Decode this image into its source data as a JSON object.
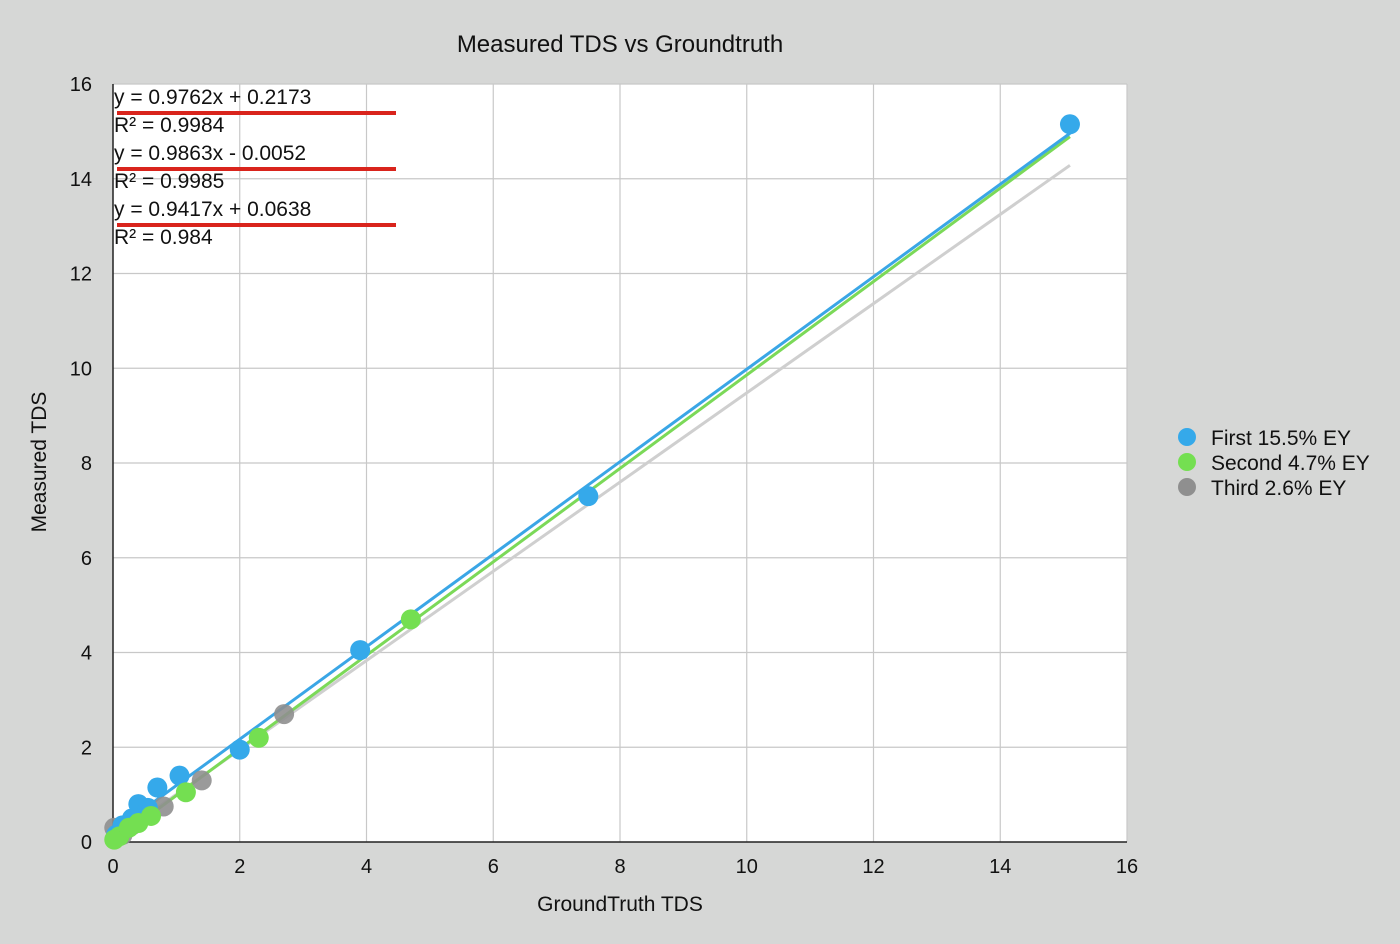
{
  "chart_data": {
    "type": "scatter",
    "title": "Measured TDS vs Groundtruth",
    "xlabel": "GroundTruth TDS",
    "ylabel": "Measured TDS",
    "xlim": [
      0,
      16
    ],
    "ylim": [
      0,
      16
    ],
    "x_ticks": [
      0,
      2,
      4,
      6,
      8,
      10,
      12,
      14,
      16
    ],
    "y_ticks": [
      0,
      2,
      4,
      6,
      8,
      10,
      12,
      14,
      16
    ],
    "grid": true,
    "legend_position": "right",
    "series": [
      {
        "name": "First 15.5% EY",
        "color": "#35a9ea",
        "trendline": {
          "slope": 0.9762,
          "intercept": 0.2173,
          "equation": "y = 0.9762x + 0.2173",
          "r2": "R² = 0.9984",
          "x_range": [
            0,
            15.1
          ]
        },
        "points": [
          {
            "x": 0.05,
            "y": 0.15
          },
          {
            "x": 0.15,
            "y": 0.35
          },
          {
            "x": 0.3,
            "y": 0.5
          },
          {
            "x": 0.4,
            "y": 0.8
          },
          {
            "x": 0.55,
            "y": 0.72
          },
          {
            "x": 0.7,
            "y": 1.15
          },
          {
            "x": 1.05,
            "y": 1.4
          },
          {
            "x": 2.0,
            "y": 1.95
          },
          {
            "x": 3.9,
            "y": 4.05
          },
          {
            "x": 7.5,
            "y": 7.3
          },
          {
            "x": 15.1,
            "y": 15.15
          }
        ]
      },
      {
        "name": "Second 4.7% EY",
        "color": "#74df51",
        "trendline": {
          "slope": 0.9863,
          "intercept": -0.0052,
          "equation": "y = 0.9863x - 0.0052",
          "r2": "R² = 0.9985",
          "x_range": [
            0,
            15.1
          ]
        },
        "points": [
          {
            "x": 0.02,
            "y": 0.05
          },
          {
            "x": 0.1,
            "y": 0.12
          },
          {
            "x": 0.25,
            "y": 0.3
          },
          {
            "x": 0.4,
            "y": 0.4
          },
          {
            "x": 0.6,
            "y": 0.55
          },
          {
            "x": 1.15,
            "y": 1.05
          },
          {
            "x": 2.3,
            "y": 2.2
          },
          {
            "x": 4.7,
            "y": 4.7
          }
        ]
      },
      {
        "name": "Third 2.6% EY",
        "color": "#8f8f8f",
        "trendline": {
          "slope": 0.9417,
          "intercept": 0.0638,
          "equation": "y = 0.9417x + 0.0638",
          "r2": "R² = 0.984",
          "x_range": [
            0,
            15.1
          ]
        },
        "points": [
          {
            "x": 0.02,
            "y": 0.3
          },
          {
            "x": 0.15,
            "y": 0.15
          },
          {
            "x": 0.3,
            "y": 0.35
          },
          {
            "x": 0.8,
            "y": 0.75
          },
          {
            "x": 1.4,
            "y": 1.3
          },
          {
            "x": 2.7,
            "y": 2.7
          }
        ]
      }
    ]
  }
}
